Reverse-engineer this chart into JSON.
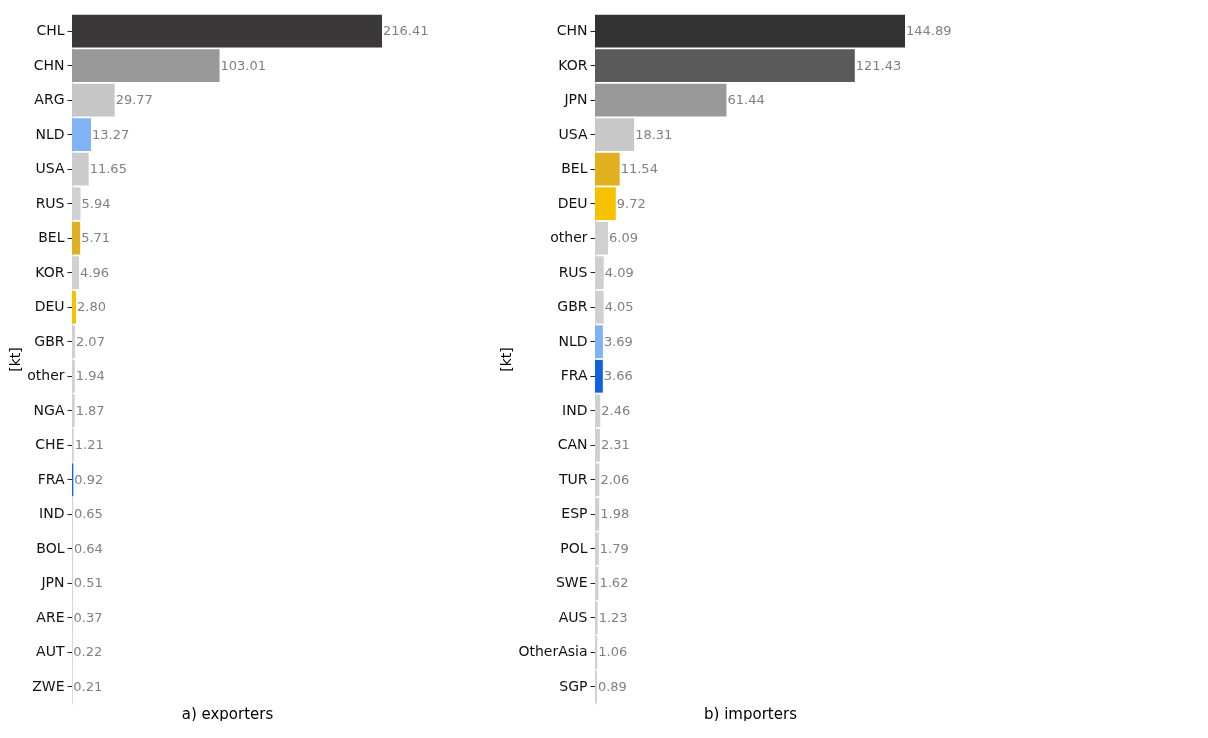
{
  "chart_data": [
    {
      "type": "bar",
      "orientation": "horizontal",
      "xlabel": "a) exporters",
      "ylabel": "[kt]",
      "tick_labels": "y",
      "categories": [
        "CHL",
        "CHN",
        "ARG",
        "NLD",
        "USA",
        "RUS",
        "BEL",
        "KOR",
        "DEU",
        "GBR",
        "other",
        "NGA",
        "CHE",
        "FRA",
        "IND",
        "BOL",
        "JPN",
        "ARE",
        "AUT",
        "ZWE"
      ],
      "values": [
        216.41,
        103.01,
        29.77,
        13.27,
        11.65,
        5.94,
        5.71,
        4.96,
        2.8,
        2.07,
        1.94,
        1.87,
        1.21,
        0.92,
        0.65,
        0.64,
        0.51,
        0.37,
        0.22,
        0.21
      ],
      "value_labels": [
        "216.41",
        "103.01",
        "29.77",
        "13.27",
        "11.65",
        "5.94",
        "5.71",
        "4.96",
        "2.80",
        "2.07",
        "1.94",
        "1.87",
        "1.21",
        "0.92",
        "0.65",
        "0.64",
        "0.51",
        "0.37",
        "0.22",
        "0.21"
      ],
      "colors": [
        "#3a3839",
        "#999999",
        "#c6c6c6",
        "#7fb3f5",
        "#cccccc",
        "#d0d0d0",
        "#e0b020",
        "#d0d0d0",
        "#f5c100",
        "#d0d0d0",
        "#d0d0d0",
        "#d0d0d0",
        "#d0d0d0",
        "#1060e0",
        "#d0d0d0",
        "#d0d0d0",
        "#d0d0d0",
        "#d0d0d0",
        "#d0d0d0",
        "#d0d0d0"
      ]
    },
    {
      "type": "bar",
      "orientation": "horizontal",
      "xlabel": "b) importers",
      "ylabel": "[kt]",
      "data_labels": true,
      "tick_labels": "y",
      "categories": [
        "CHN",
        "KOR",
        "JPN",
        "USA",
        "BEL",
        "DEU",
        "other",
        "RUS",
        "GBR",
        "NLD",
        "FRA",
        "IND",
        "CAN",
        "TUR",
        "ESP",
        "POL",
        "SWE",
        "AUS",
        "OtherAsia",
        "SGP"
      ],
      "values": [
        144.89,
        121.43,
        61.44,
        18.31,
        11.54,
        9.72,
        6.09,
        4.09,
        4.05,
        3.69,
        3.66,
        2.46,
        2.31,
        2.06,
        1.98,
        1.79,
        1.62,
        1.23,
        1.06,
        0.89
      ],
      "colors": [
        "#333333",
        "#5a5a5a",
        "#999999",
        "#c8c8c8",
        "#e0b020",
        "#f5c100",
        "#d0d0d0",
        "#d0d0d0",
        "#d0d0d0",
        "#7fb3f5",
        "#1060e0",
        "#d0d0d0",
        "#d0d0d0",
        "#d0d0d0",
        "#d0d0d0",
        "#d0d0d0",
        "#d0d0d0",
        "#d0d0d0",
        "#d0d0d0",
        "#d0d0d0"
      ]
    }
  ]
}
